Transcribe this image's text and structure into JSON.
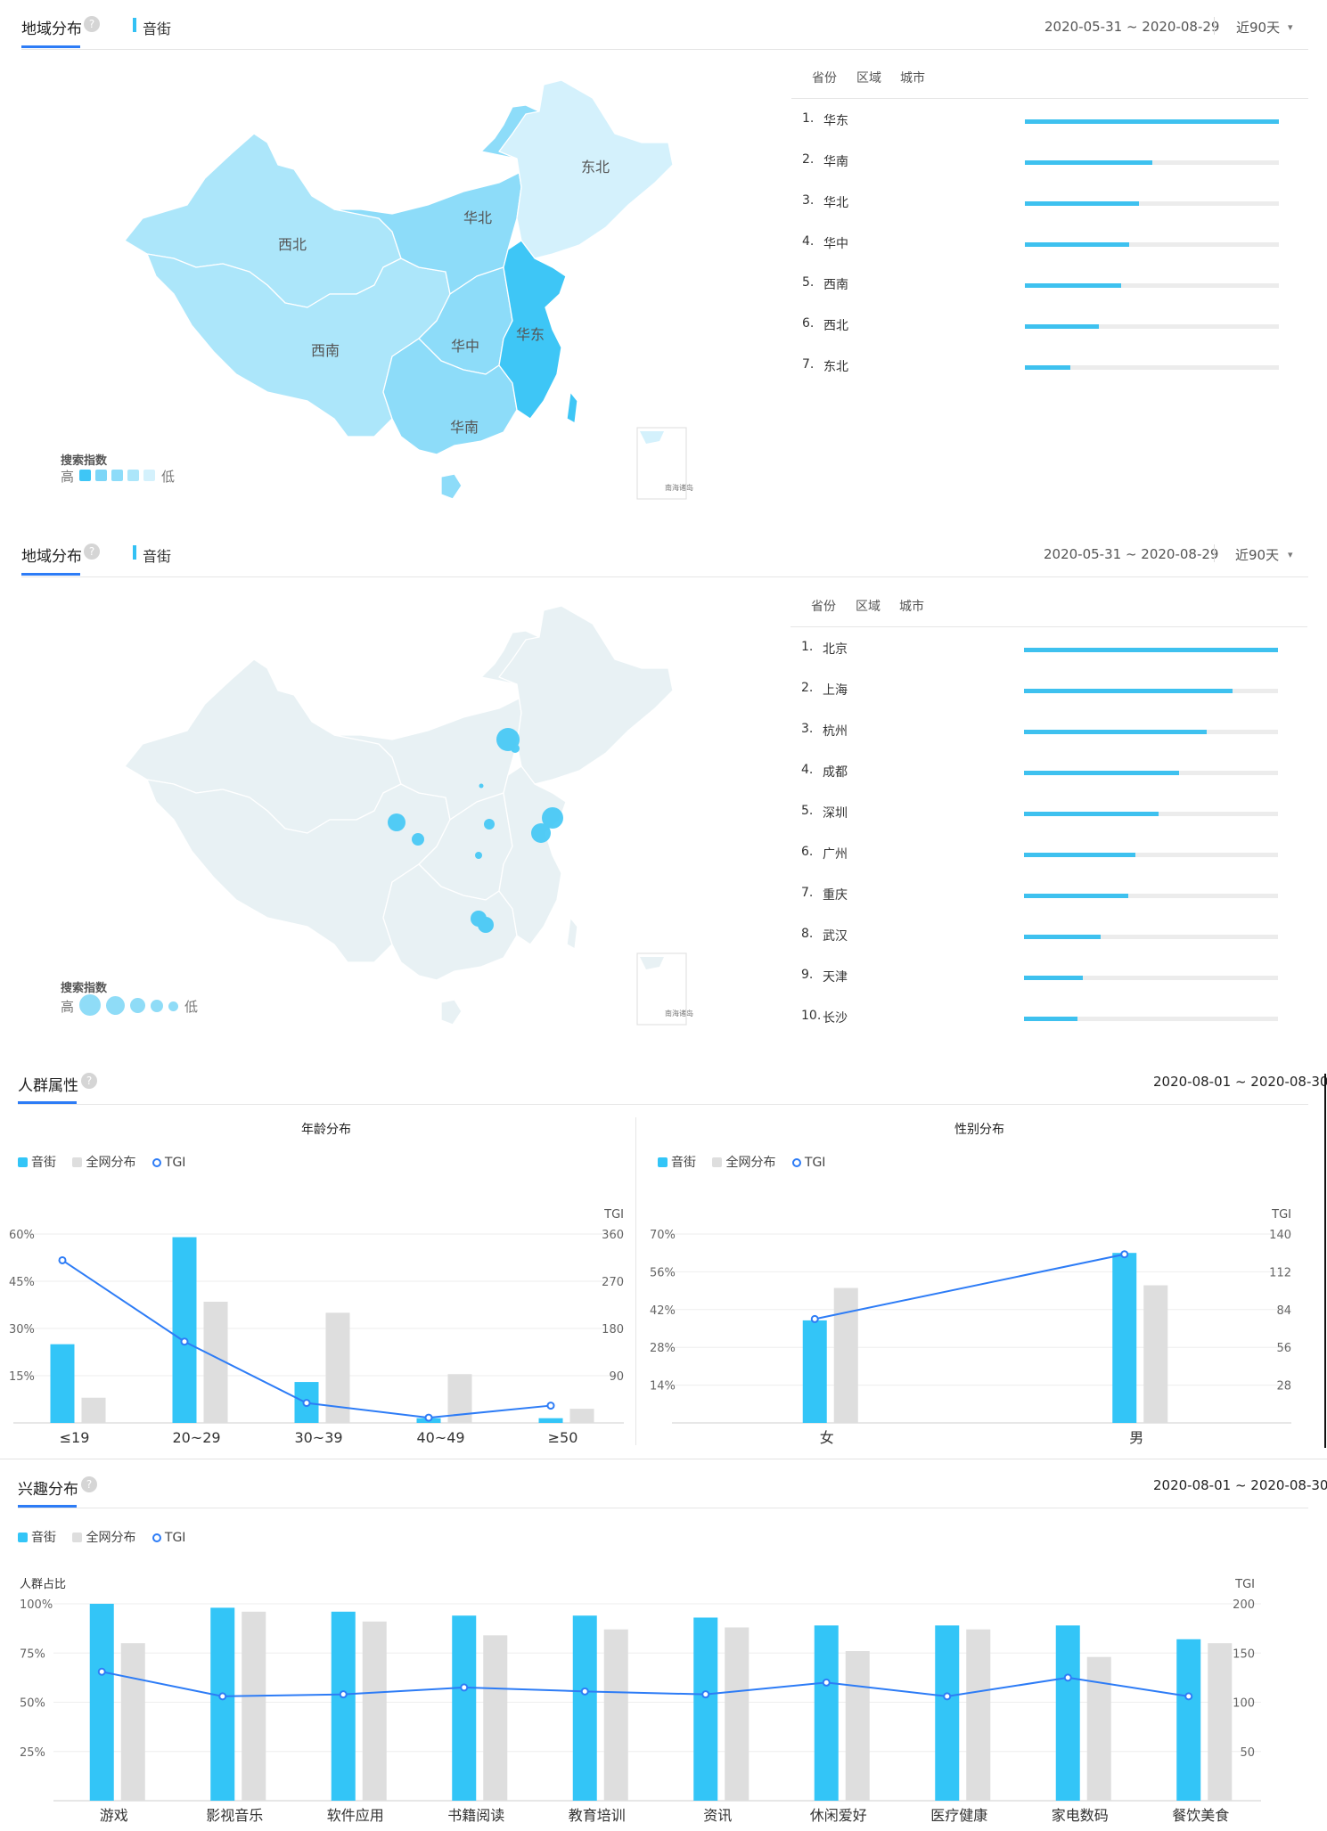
{
  "section1": {
    "title": "地域分布",
    "help": "?",
    "keyword": "音街",
    "date_range": "2020-05-31 ~ 2020-08-29",
    "period": "近90天",
    "subtabs": [
      "省份",
      "区域",
      "城市"
    ],
    "map_labels": [
      "东北",
      "华北",
      "西北",
      "西南",
      "华中",
      "华东",
      "华南"
    ],
    "inset_text": "南海诸岛",
    "legend": {
      "title": "搜索指数",
      "high": "高",
      "low": "低"
    },
    "colors": [
      "#3ec6f6",
      "#7dd6f7",
      "#8ddcf9",
      "#ace6fa",
      "#d4f1fc"
    ],
    "ranking": [
      {
        "rank": "1.",
        "name": "华东",
        "value": 100
      },
      {
        "rank": "2.",
        "name": "华南",
        "value": 50
      },
      {
        "rank": "3.",
        "name": "华北",
        "value": 45
      },
      {
        "rank": "4.",
        "name": "华中",
        "value": 41
      },
      {
        "rank": "5.",
        "name": "西南",
        "value": 38
      },
      {
        "rank": "6.",
        "name": "西北",
        "value": 29
      },
      {
        "rank": "7.",
        "name": "东北",
        "value": 18
      }
    ]
  },
  "section2": {
    "title": "地域分布",
    "help": "?",
    "keyword": "音街",
    "date_range": "2020-05-31 ~ 2020-08-29",
    "period": "近90天",
    "subtabs": [
      "省份",
      "区域",
      "城市"
    ],
    "inset_text": "南海诸岛",
    "legend": {
      "title": "搜索指数",
      "high": "高",
      "low": "低"
    },
    "ranking": [
      {
        "rank": "1.",
        "name": "北京",
        "value": 100
      },
      {
        "rank": "2.",
        "name": "上海",
        "value": 82
      },
      {
        "rank": "3.",
        "name": "杭州",
        "value": 72
      },
      {
        "rank": "4.",
        "name": "成都",
        "value": 61
      },
      {
        "rank": "5.",
        "name": "深圳",
        "value": 53
      },
      {
        "rank": "6.",
        "name": "广州",
        "value": 44
      },
      {
        "rank": "7.",
        "name": "重庆",
        "value": 41
      },
      {
        "rank": "8.",
        "name": "武汉",
        "value": 30
      },
      {
        "rank": "9.",
        "name": "天津",
        "value": 23
      },
      {
        "rank": "10.",
        "name": "长沙",
        "value": 21
      }
    ]
  },
  "section3": {
    "title": "人群属性",
    "help": "?",
    "date_range": "2020-08-01 ~ 2020-08-30",
    "legend": [
      "音街",
      "全网分布",
      "TGI"
    ]
  },
  "section4": {
    "title": "兴趣分布",
    "help": "?",
    "date_range": "2020-08-01 ~ 2020-08-30",
    "legend": [
      "音街",
      "全网分布",
      "TGI"
    ]
  },
  "colors": {
    "primary": "#33c5f7",
    "secondary": "#dedede",
    "tgi_line": "#2d7cf6",
    "accent": "#2d7cf6"
  },
  "chart_data": [
    {
      "type": "bar",
      "title": "年龄分布",
      "categories": [
        "≤19",
        "20~29",
        "30~39",
        "40~49",
        "≥50"
      ],
      "series": [
        {
          "name": "音街",
          "values": [
            25,
            59,
            13,
            1.5,
            1.5
          ]
        },
        {
          "name": "全网分布",
          "values": [
            8,
            38.5,
            35,
            15.5,
            4.5
          ]
        },
        {
          "name": "TGI",
          "axis": "right",
          "values": [
            310,
            155,
            38,
            10,
            33
          ]
        }
      ],
      "y_ticks": [
        "60%",
        "45%",
        "30%",
        "15%"
      ],
      "ylim": [
        0,
        60
      ],
      "y2label": "TGI",
      "y2_ticks": [
        "360",
        "270",
        "180",
        "90"
      ],
      "y2lim": [
        0,
        360
      ],
      "legend": "top-left",
      "grid": true
    },
    {
      "type": "bar",
      "title": "性别分布",
      "categories": [
        "女",
        "男"
      ],
      "series": [
        {
          "name": "音街",
          "values": [
            38,
            63
          ]
        },
        {
          "name": "全网分布",
          "values": [
            50,
            51
          ]
        },
        {
          "name": "TGI",
          "axis": "right",
          "values": [
            77,
            125
          ]
        }
      ],
      "y_ticks": [
        "70%",
        "56%",
        "42%",
        "28%",
        "14%"
      ],
      "ylim": [
        0,
        70
      ],
      "y2label": "TGI",
      "y2_ticks": [
        "140",
        "112",
        "84",
        "56",
        "28"
      ],
      "y2lim": [
        0,
        140
      ],
      "legend": "top-left",
      "grid": true
    },
    {
      "type": "bar",
      "title": "",
      "categories": [
        "游戏",
        "影视音乐",
        "软件应用",
        "书籍阅读",
        "教育培训",
        "资讯",
        "休闲爱好",
        "医疗健康",
        "家电数码",
        "餐饮美食"
      ],
      "series": [
        {
          "name": "音街",
          "values": [
            100,
            98,
            96,
            94,
            94,
            93,
            89,
            89,
            89,
            82
          ]
        },
        {
          "name": "全网分布",
          "values": [
            80,
            96,
            91,
            84,
            87,
            88,
            76,
            87,
            73,
            80
          ]
        },
        {
          "name": "TGI",
          "axis": "right",
          "values": [
            131,
            106,
            108,
            115,
            111,
            108,
            120,
            106,
            125,
            106
          ]
        }
      ],
      "ylabel": "人群占比",
      "y_ticks": [
        "100%",
        "75%",
        "50%",
        "25%"
      ],
      "ylim": [
        0,
        100
      ],
      "y2label": "TGI",
      "y2_ticks": [
        "200",
        "150",
        "100",
        "50"
      ],
      "y2lim": [
        0,
        200
      ],
      "legend": "top-left",
      "grid": true
    }
  ]
}
